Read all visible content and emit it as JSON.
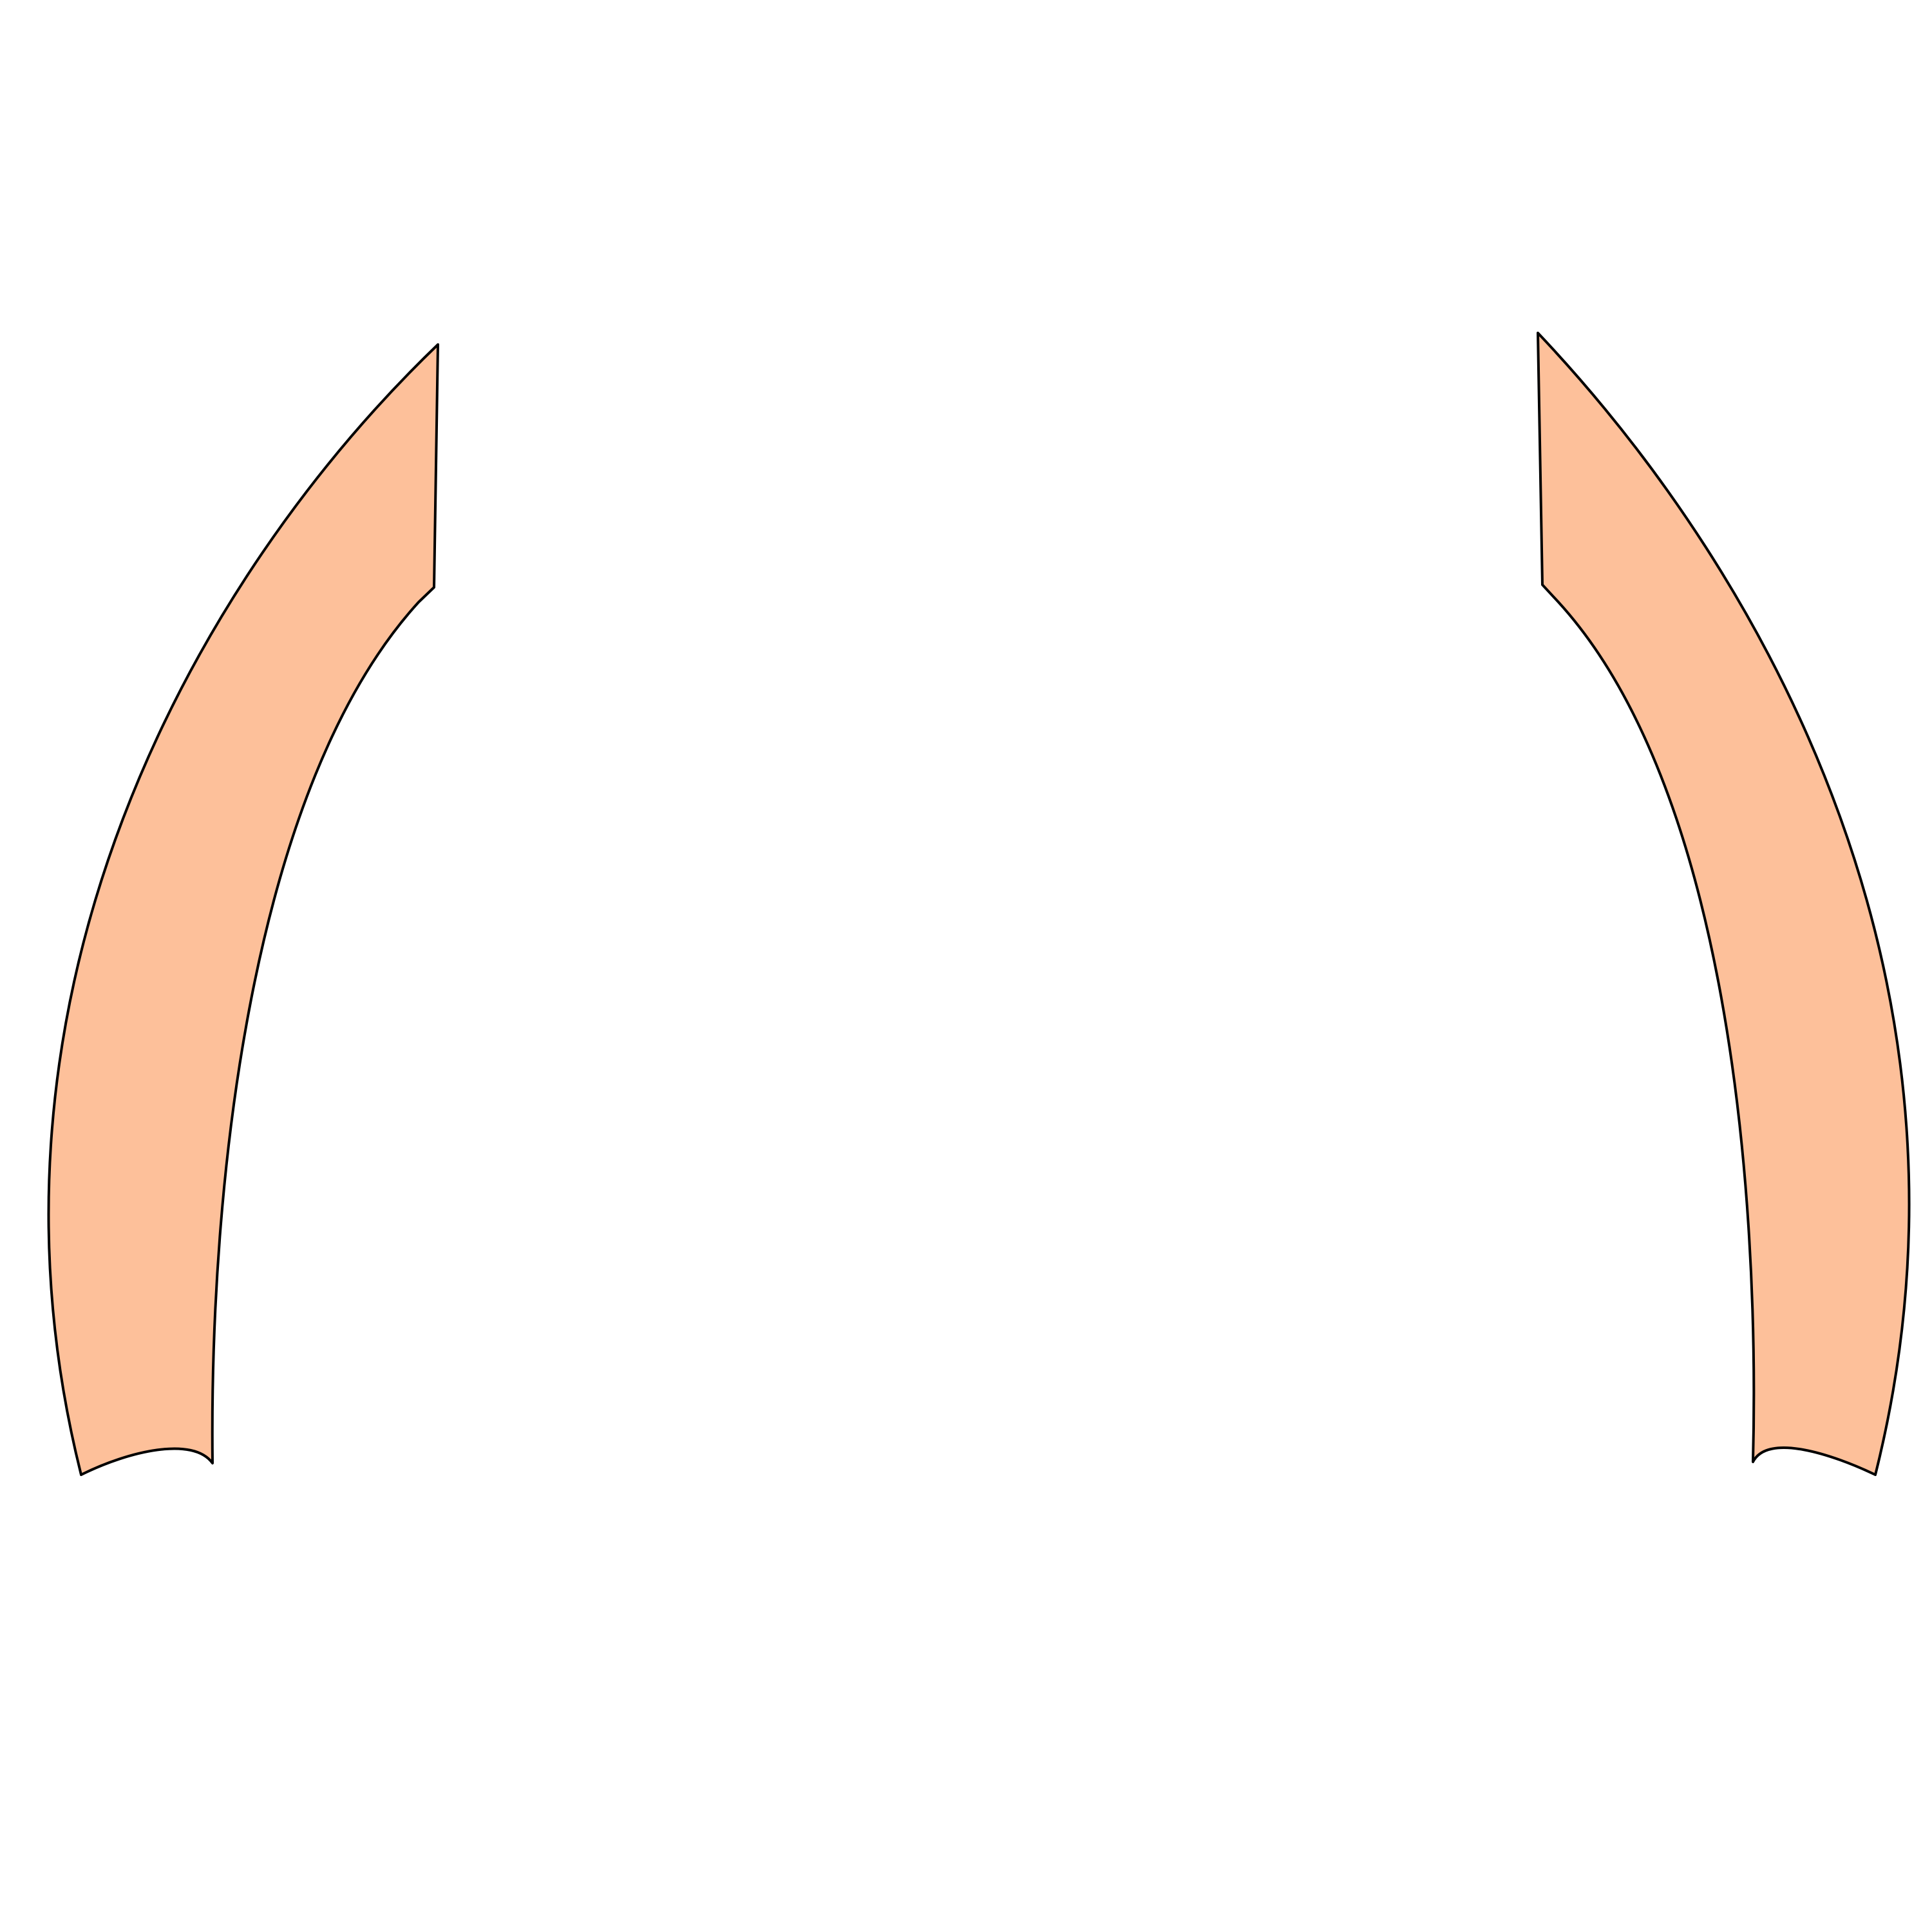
{
  "colors": {
    "background": "#ffffff",
    "shape_fill": "#fdc09a",
    "outline": "#000000"
  },
  "shapes": [
    {
      "name": "left-curved-band",
      "fill": "#fdc09a"
    },
    {
      "name": "right-curved-band",
      "fill": "#fdc09a"
    }
  ]
}
